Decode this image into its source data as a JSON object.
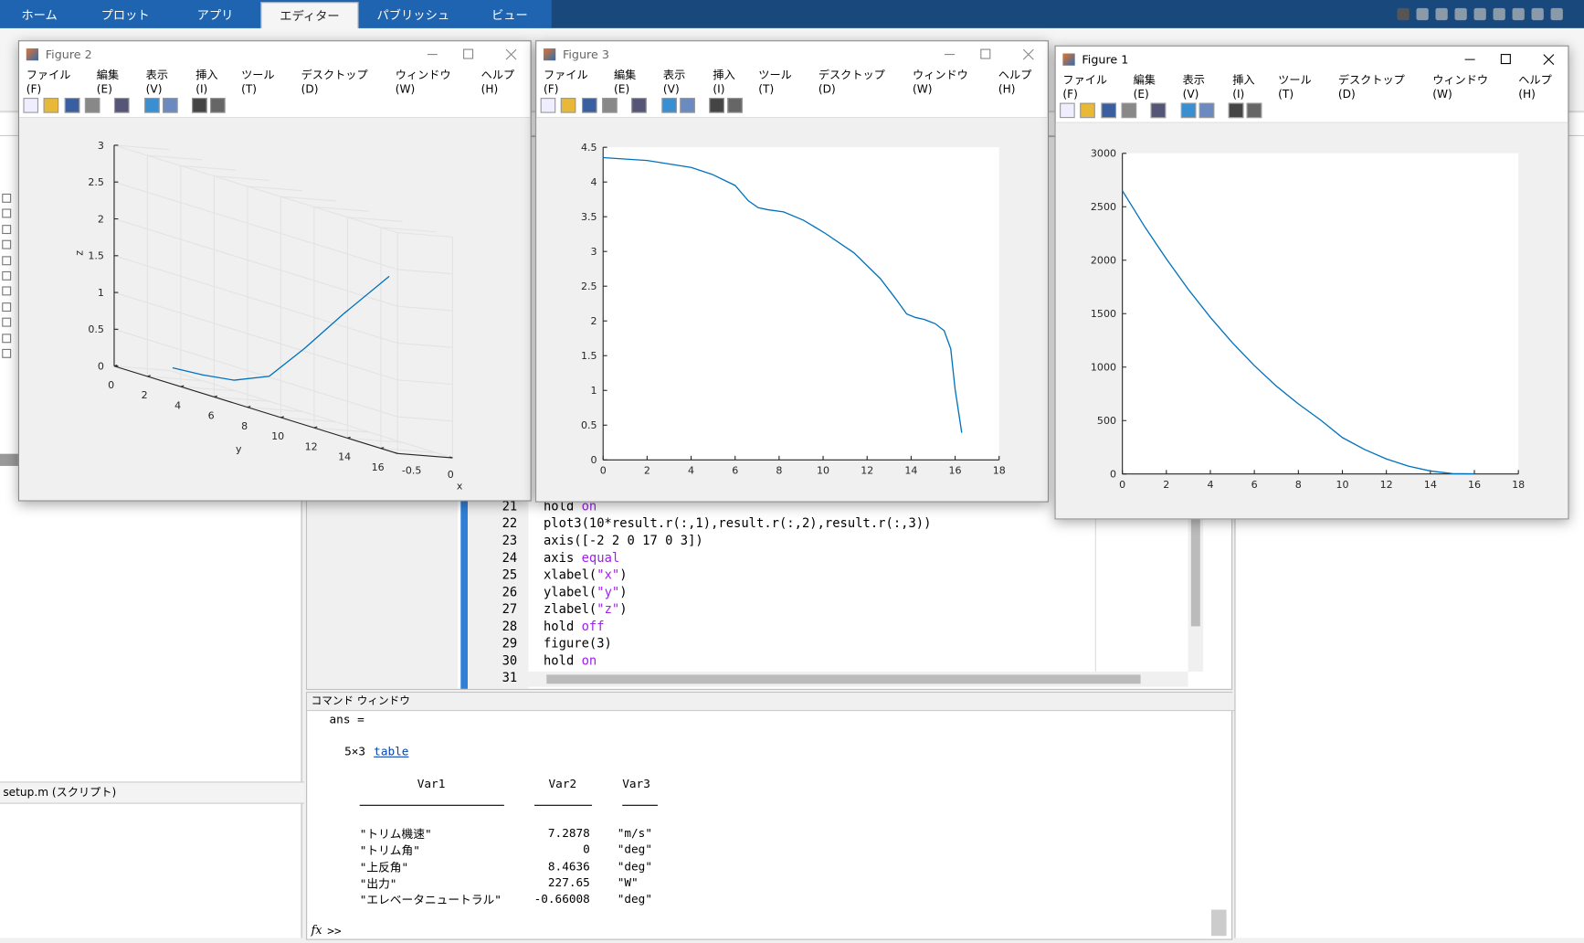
{
  "tabs": [
    "ホーム",
    "プロット",
    "アプリ",
    "エディター",
    "パブリッシュ",
    "ビュー"
  ],
  "active_tab": 3,
  "left_panel": {
    "file": "setup.m (スクリプト)"
  },
  "editor": {
    "lines": [
      {
        "num": "21",
        "parts": [
          "hold ",
          "on"
        ]
      },
      {
        "num": "22",
        "parts": [
          "plot3(10*result.r(:,1),result.r(:,2),result.r(:,3))"
        ]
      },
      {
        "num": "23",
        "parts": [
          "axis([-2 2 0 17 0 3])"
        ]
      },
      {
        "num": "24",
        "parts": [
          "axis ",
          "equal"
        ]
      },
      {
        "num": "25",
        "parts": [
          "xlabel(",
          "\"x\"",
          ")"
        ]
      },
      {
        "num": "26",
        "parts": [
          "ylabel(",
          "\"y\"",
          ")"
        ]
      },
      {
        "num": "27",
        "parts": [
          "zlabel(",
          "\"z\"",
          ")"
        ]
      },
      {
        "num": "28",
        "parts": [
          "hold ",
          "off"
        ]
      },
      {
        "num": "29",
        "parts": [
          "figure(3)"
        ]
      },
      {
        "num": "30",
        "parts": [
          "hold ",
          "on"
        ]
      },
      {
        "num": "31",
        "parts": []
      }
    ]
  },
  "command_window": {
    "title": "コマンド ウィンドウ",
    "ans": "ans =",
    "size": "5×3",
    "link": "table",
    "headers": [
      "Var1",
      "Var2",
      "Var3"
    ],
    "rows": [
      [
        "\"トリム機速\"",
        7.2878,
        "\"m/s\""
      ],
      [
        "\"トリム角\"",
        0,
        "\"deg\""
      ],
      [
        "\"上反角\"",
        8.4636,
        "\"deg\""
      ],
      [
        "\"出力\"",
        227.65,
        "\"W\""
      ],
      [
        "\"エレベータニュートラル\"",
        -0.66008,
        "\"deg\""
      ]
    ],
    "prompt": ">>",
    "fx": "fx"
  },
  "menu": [
    "ファイル(F)",
    "編集(E)",
    "表示(V)",
    "挿入(I)",
    "ツール(T)",
    "デスクトップ(D)",
    "ウィンドウ(W)",
    "ヘルプ(H)"
  ],
  "figures": [
    {
      "title": "Figure 2",
      "plot": {
        "type": "line3d",
        "color": "#0072bd",
        "grid": true,
        "xlabel": "x",
        "ylabel": "y",
        "zlabel": "z",
        "xlim": [
          -0.5,
          0
        ],
        "xticks": [
          -0.5,
          0
        ],
        "ylim": [
          0,
          17
        ],
        "yticks": [
          0,
          2,
          4,
          6,
          8,
          10,
          12,
          14,
          16
        ],
        "zlim": [
          0,
          3
        ],
        "zticks": [
          0,
          0.5,
          1,
          1.5,
          2,
          2.5,
          3
        ],
        "y": [
          0.2,
          2,
          3.9,
          6,
          8.1,
          10.5,
          13.2
        ],
        "z": [
          0.05,
          0.08,
          0.14,
          0.34,
          0.86,
          1.51,
          2.2
        ]
      }
    },
    {
      "title": "Figure 3",
      "plot": {
        "type": "line",
        "color": "#0072bd",
        "xlim": [
          0,
          18
        ],
        "xticks": [
          0,
          2,
          4,
          6,
          8,
          10,
          12,
          14,
          16,
          18
        ],
        "ylim": [
          0,
          4.5
        ],
        "yticks": [
          0,
          0.5,
          1,
          1.5,
          2,
          2.5,
          3,
          3.5,
          4,
          4.5
        ],
        "x": [
          0,
          2,
          4,
          4.96,
          6,
          6.6,
          7.05,
          7.5,
          8.2,
          9.1,
          10.05,
          11.4,
          12.6,
          13.3,
          13.8,
          14.2,
          14.6,
          15.1,
          15.5,
          15.8,
          16,
          16.3
        ],
        "y": [
          4.35,
          4.31,
          4.21,
          4.11,
          3.95,
          3.73,
          3.63,
          3.6,
          3.57,
          3.45,
          3.27,
          2.98,
          2.61,
          2.32,
          2.1,
          2.05,
          2.02,
          1.96,
          1.86,
          1.6,
          1.02,
          0.39
        ]
      }
    },
    {
      "title": "Figure 1",
      "plot": {
        "type": "line",
        "color": "#0072bd",
        "xlim": [
          0,
          18
        ],
        "xticks": [
          0,
          2,
          4,
          6,
          8,
          10,
          12,
          14,
          16,
          18
        ],
        "ylim": [
          0,
          3000
        ],
        "yticks": [
          0,
          500,
          1000,
          1500,
          2000,
          2500,
          3000
        ],
        "x": [
          0,
          1,
          2,
          3,
          4,
          5,
          6,
          7,
          8,
          9,
          10,
          11,
          12,
          13,
          14,
          15,
          16
        ],
        "y": [
          2650,
          2318,
          2011,
          1726,
          1465,
          1228,
          1013,
          823,
          656,
          507,
          341,
          230,
          141,
          74,
          28,
          4,
          2
        ]
      }
    }
  ]
}
